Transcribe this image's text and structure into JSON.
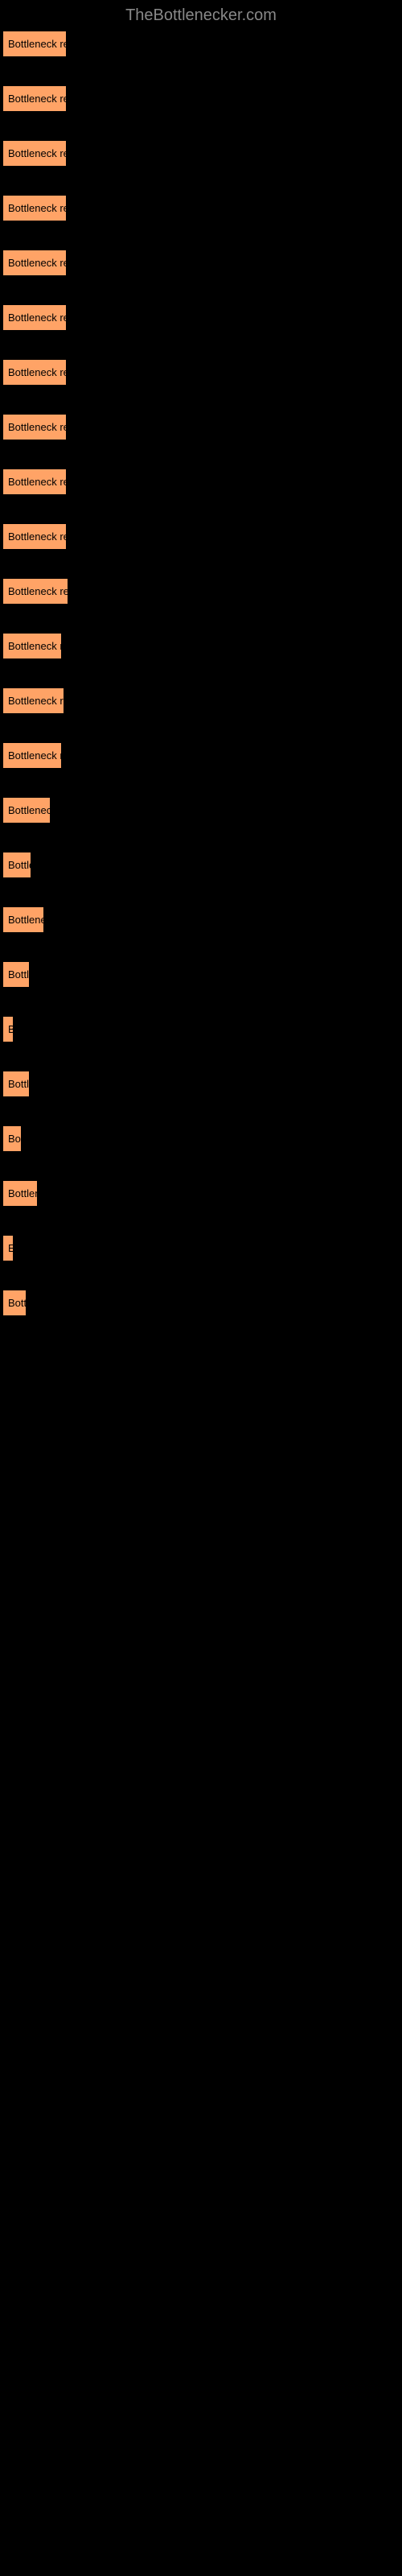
{
  "header": {
    "title": "TheBottlenecker.com"
  },
  "items": [
    {
      "label": "Bottleneck result",
      "width": 78
    },
    {
      "label": "Bottleneck result",
      "width": 78
    },
    {
      "label": "Bottleneck result",
      "width": 78
    },
    {
      "label": "Bottleneck result",
      "width": 78
    },
    {
      "label": "Bottleneck result",
      "width": 78
    },
    {
      "label": "Bottleneck result",
      "width": 78
    },
    {
      "label": "Bottleneck result",
      "width": 78
    },
    {
      "label": "Bottleneck result",
      "width": 78
    },
    {
      "label": "Bottleneck result",
      "width": 78
    },
    {
      "label": "Bottleneck result",
      "width": 78
    },
    {
      "label": "Bottleneck result",
      "width": 80
    },
    {
      "label": "Bottleneck resu",
      "width": 72
    },
    {
      "label": "Bottleneck resul",
      "width": 75
    },
    {
      "label": "Bottleneck resu",
      "width": 72
    },
    {
      "label": "Bottleneck r",
      "width": 58
    },
    {
      "label": "Bottler",
      "width": 34
    },
    {
      "label": "Bottleneck",
      "width": 50
    },
    {
      "label": "Bottle",
      "width": 32
    },
    {
      "label": "B",
      "width": 12
    },
    {
      "label": "Bottle",
      "width": 32
    },
    {
      "label": "Bot",
      "width": 22
    },
    {
      "label": "Bottlene",
      "width": 42
    },
    {
      "label": "E",
      "width": 10
    },
    {
      "label": "Bottl",
      "width": 28
    }
  ],
  "colors": {
    "background": "#000000",
    "item_background": "#ffa366",
    "header_text": "#888888",
    "item_text": "#000000"
  }
}
